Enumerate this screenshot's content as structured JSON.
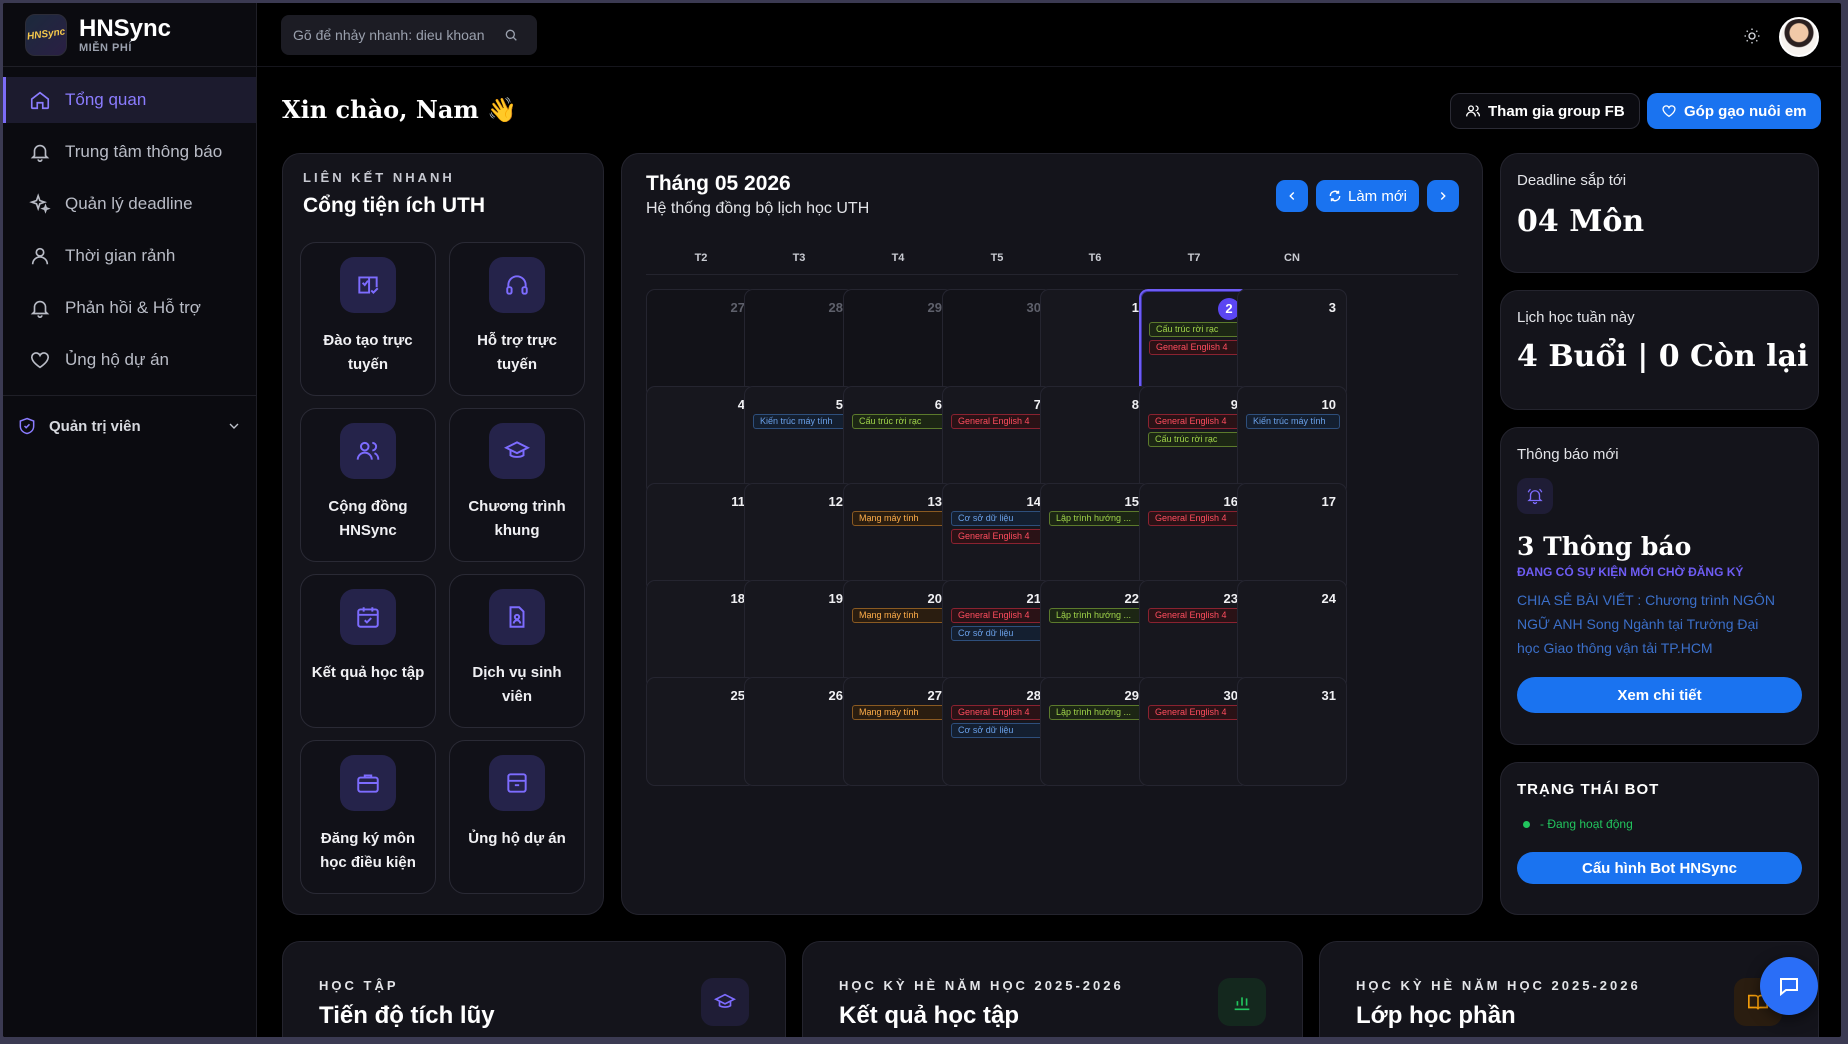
{
  "brand": {
    "title": "HNSync",
    "subtitle": "MIỄN PHÍ",
    "logo_text": "HNSync"
  },
  "sidebar": {
    "items": [
      {
        "label": "Tổng quan",
        "icon": "home-icon",
        "active": true
      },
      {
        "label": "Trung tâm thông báo",
        "icon": "bell-icon"
      },
      {
        "label": "Quản lý deadline",
        "icon": "sparkles-icon"
      },
      {
        "label": "Thời gian rảnh",
        "icon": "user-icon"
      },
      {
        "label": "Phản hồi & Hỗ trợ",
        "icon": "bell-icon"
      },
      {
        "label": "Ủng hộ dự án",
        "icon": "heart-icon"
      }
    ],
    "admin_label": "Quản trị viên"
  },
  "search": {
    "placeholder": "Gõ để nhảy nhanh: dieu khoan"
  },
  "header": {
    "greeting": "Xin chào, Nam 👋",
    "join_fb": "Tham gia group FB",
    "donate": "Góp gạo nuôi em"
  },
  "quick_links": {
    "overline": "LIÊN KẾT NHANH",
    "title": "Cổng tiện ích UTH",
    "tiles": [
      {
        "label": "Đào tạo trực tuyến",
        "icon": "elearning-icon"
      },
      {
        "label": "Hỗ trợ trực tuyến",
        "icon": "headset-icon"
      },
      {
        "label": "Cộng đồng HNSync",
        "icon": "users-icon"
      },
      {
        "label": "Chương trình khung",
        "icon": "graduation-cap-icon"
      },
      {
        "label": "Kết quả học tập",
        "icon": "calendar-check-icon"
      },
      {
        "label": "Dịch vụ sinh viên",
        "icon": "file-user-icon"
      },
      {
        "label": "Đăng ký môn học điều kiện",
        "icon": "briefcase-icon"
      },
      {
        "label": "Ủng hộ dự án",
        "icon": "archive-icon"
      }
    ]
  },
  "calendar": {
    "title": "Tháng 05 2026",
    "subtitle": "Hệ thống đồng bộ lịch học UTH",
    "refresh": "Làm mới",
    "weekdays": [
      "T2",
      "T3",
      "T4",
      "T5",
      "T6",
      "T7",
      "CN"
    ],
    "weeks": [
      [
        {
          "d": "27",
          "other": true
        },
        {
          "d": "28",
          "other": true
        },
        {
          "d": "29",
          "other": true
        },
        {
          "d": "30",
          "other": true
        },
        {
          "d": "1"
        },
        {
          "d": "2",
          "today": true,
          "events": [
            {
              "t": "Cấu trúc rời rạc",
              "c": "green"
            },
            {
              "t": "General English 4",
              "c": "red"
            }
          ]
        },
        {
          "d": "3"
        }
      ],
      [
        {
          "d": "4"
        },
        {
          "d": "5",
          "events": [
            {
              "t": "Kiến trúc máy tính",
              "c": "blue"
            }
          ]
        },
        {
          "d": "6",
          "events": [
            {
              "t": "Cấu trúc rời rạc",
              "c": "green"
            }
          ]
        },
        {
          "d": "7",
          "events": [
            {
              "t": "General English 4",
              "c": "red"
            }
          ]
        },
        {
          "d": "8"
        },
        {
          "d": "9",
          "events": [
            {
              "t": "General English 4",
              "c": "red"
            },
            {
              "t": "Cấu trúc rời rạc",
              "c": "green"
            }
          ]
        },
        {
          "d": "10",
          "events": [
            {
              "t": "Kiến trúc máy tính",
              "c": "blue"
            }
          ]
        }
      ],
      [
        {
          "d": "11"
        },
        {
          "d": "12"
        },
        {
          "d": "13",
          "events": [
            {
              "t": "Mạng máy tính",
              "c": "orange"
            }
          ]
        },
        {
          "d": "14",
          "events": [
            {
              "t": "Cơ sở dữ liệu",
              "c": "blue"
            },
            {
              "t": "General English 4",
              "c": "red"
            }
          ]
        },
        {
          "d": "15",
          "events": [
            {
              "t": "Lập trình hướng ...",
              "c": "green"
            }
          ]
        },
        {
          "d": "16",
          "events": [
            {
              "t": "General English 4",
              "c": "red"
            }
          ]
        },
        {
          "d": "17"
        }
      ],
      [
        {
          "d": "18"
        },
        {
          "d": "19"
        },
        {
          "d": "20",
          "events": [
            {
              "t": "Mạng máy tính",
              "c": "orange"
            }
          ]
        },
        {
          "d": "21",
          "events": [
            {
              "t": "General English 4",
              "c": "red"
            },
            {
              "t": "Cơ sở dữ liệu",
              "c": "blue"
            }
          ]
        },
        {
          "d": "22",
          "events": [
            {
              "t": "Lập trình hướng ...",
              "c": "green"
            }
          ]
        },
        {
          "d": "23",
          "events": [
            {
              "t": "General English 4",
              "c": "red"
            }
          ]
        },
        {
          "d": "24"
        }
      ],
      [
        {
          "d": "25"
        },
        {
          "d": "26"
        },
        {
          "d": "27",
          "events": [
            {
              "t": "Mạng máy tính",
              "c": "orange"
            }
          ]
        },
        {
          "d": "28",
          "events": [
            {
              "t": "General English 4",
              "c": "red"
            },
            {
              "t": "Cơ sở dữ liệu",
              "c": "blue"
            }
          ]
        },
        {
          "d": "29",
          "events": [
            {
              "t": "Lập trình hướng ...",
              "c": "green"
            }
          ]
        },
        {
          "d": "30",
          "events": [
            {
              "t": "General English 4",
              "c": "red"
            }
          ]
        },
        {
          "d": "31"
        }
      ]
    ]
  },
  "deadline": {
    "label": "Deadline sắp tới",
    "value": "04 Môn"
  },
  "schedule": {
    "label": "Lịch học tuần này",
    "value": "4 Buổi | 0 Còn lại"
  },
  "notifications": {
    "label": "Thông báo mới",
    "count": "3 Thông báo",
    "alert": "ĐANG CÓ SỰ KIỆN MỚI CHỜ ĐĂNG KÝ",
    "text": "CHIA SẺ BÀI VIẾT : Chương trình NGÔN NGỮ ANH Song Ngành tại Trường Đại học Giao thông vận tải TP.HCM",
    "button": "Xem chi tiết"
  },
  "bot": {
    "title": "TRẠNG THÁI BOT",
    "status": "- Đang hoạt động",
    "button": "Cấu hình Bot HNSync"
  },
  "bottom_cards": [
    {
      "overline": "HỌC TẬP",
      "title": "Tiến độ tích lũy",
      "icon": "graduation-cap-icon"
    },
    {
      "overline": "HỌC KỲ HÈ NĂM HỌC 2025-2026",
      "title": "Kết quả học tập",
      "icon": "bar-chart-icon"
    },
    {
      "overline": "HỌC KỲ HÈ NĂM HỌC 2025-2026",
      "title": "Lớp học phần",
      "icon": "book-open-icon"
    }
  ],
  "colors": {
    "accent": "#7c6cf6",
    "primary_button": "#1a73f0",
    "background": "#000000",
    "card": "#14141b"
  }
}
